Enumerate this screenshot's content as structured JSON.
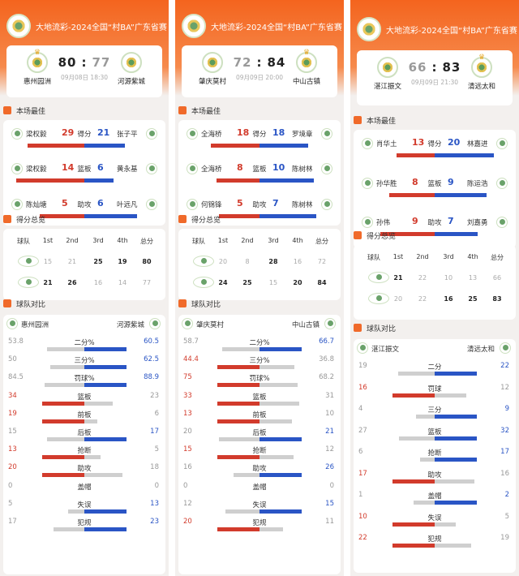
{
  "panels": [
    {
      "title": "大地流彩-2024全国“村BA”广东省赛",
      "team_left": "惠州园洲",
      "team_right": "河源紫城",
      "score_left": "80",
      "score_right": "77",
      "sep": ":",
      "winner": "left",
      "date": "09月08日 18:30",
      "best_title": "本场最佳",
      "best": [
        {
          "lp": "梁权毅",
          "lv": "29",
          "cat": "得分",
          "rv": "21",
          "rp": "张子平"
        },
        {
          "lp": "梁权毅",
          "lv": "14",
          "cat": "篮板",
          "rv": "6",
          "rp": "黄永基"
        },
        {
          "lp": "陈灿塘",
          "lv": "5",
          "cat": "助攻",
          "rv": "6",
          "rp": "叶远凡"
        }
      ],
      "quarters_title": "得分总览",
      "quarter_headers": [
        "球队",
        "1st",
        "2nd",
        "3rd",
        "4th",
        "总分"
      ],
      "quarter_rows": [
        [
          "15",
          "21",
          "25",
          "19",
          "80"
        ],
        [
          "21",
          "26",
          "16",
          "14",
          "77"
        ]
      ],
      "compare_title": "球队对比",
      "cmp_left": "惠州园洲",
      "cmp_right": "河源紫城",
      "compare": [
        {
          "l": "53.8",
          "c": "二分%",
          "r": "60.5"
        },
        {
          "l": "50",
          "c": "三分%",
          "r": "62.5"
        },
        {
          "l": "84.5",
          "c": "罚球%",
          "r": "88.9"
        },
        {
          "l": "34",
          "c": "篮板",
          "r": "23"
        },
        {
          "l": "19",
          "c": "前板",
          "r": "6"
        },
        {
          "l": "15",
          "c": "后板",
          "r": "17"
        },
        {
          "l": "13",
          "c": "抢断",
          "r": "5"
        },
        {
          "l": "20",
          "c": "助攻",
          "r": "18"
        },
        {
          "l": "0",
          "c": "盖帽",
          "r": "0"
        },
        {
          "l": "5",
          "c": "失误",
          "r": "13"
        },
        {
          "l": "17",
          "c": "犯规",
          "r": "23"
        }
      ]
    },
    {
      "title": "大地流彩-2024全国“村BA”广东省赛",
      "team_left": "肇庆莫村",
      "team_right": "中山古镇",
      "score_left": "72",
      "score_right": "84",
      "sep": ":",
      "winner": "right",
      "date": "09月09日 20:00",
      "best_title": "本场最佳",
      "best": [
        {
          "lp": "全海桥",
          "lv": "18",
          "cat": "得分",
          "rv": "18",
          "rp": "罗境章"
        },
        {
          "lp": "全海桥",
          "lv": "8",
          "cat": "篮板",
          "rv": "10",
          "rp": "陈树林"
        },
        {
          "lp": "何锦锋",
          "lv": "5",
          "cat": "助攻",
          "rv": "7",
          "rp": "陈树林"
        }
      ],
      "quarters_title": "得分总览",
      "quarter_headers": [
        "球队",
        "1st",
        "2nd",
        "3rd",
        "4th",
        "总分"
      ],
      "quarter_rows": [
        [
          "20",
          "8",
          "28",
          "16",
          "72"
        ],
        [
          "24",
          "25",
          "15",
          "20",
          "84"
        ]
      ],
      "compare_title": "球队对比",
      "cmp_left": "肇庆莫村",
      "cmp_right": "中山古镇",
      "compare": [
        {
          "l": "58.7",
          "c": "二分%",
          "r": "66.7"
        },
        {
          "l": "44.4",
          "c": "三分%",
          "r": "36.8"
        },
        {
          "l": "75",
          "c": "罚球%",
          "r": "68.2"
        },
        {
          "l": "33",
          "c": "篮板",
          "r": "31"
        },
        {
          "l": "13",
          "c": "前板",
          "r": "10"
        },
        {
          "l": "20",
          "c": "后板",
          "r": "21"
        },
        {
          "l": "15",
          "c": "抢断",
          "r": "12"
        },
        {
          "l": "16",
          "c": "助攻",
          "r": "26"
        },
        {
          "l": "0",
          "c": "盖帽",
          "r": "0"
        },
        {
          "l": "12",
          "c": "失误",
          "r": "15"
        },
        {
          "l": "20",
          "c": "犯规",
          "r": "11"
        }
      ]
    },
    {
      "title": "大地流彩-2024全国“村BA”广东省赛",
      "team_left": "湛江振文",
      "team_right": "清远太和",
      "score_left": "66",
      "score_right": "83",
      "sep": ":",
      "winner": "right",
      "date": "09月09日 21:30",
      "best_title": "本场最佳",
      "best": [
        {
          "lp": "肖华土",
          "lv": "13",
          "cat": "得分",
          "rv": "20",
          "rp": "林嘉进"
        },
        {
          "lp": "孙华胜",
          "lv": "8",
          "cat": "篮板",
          "rv": "9",
          "rp": "陈运浩"
        },
        {
          "lp": "孙伟",
          "lv": "9",
          "cat": "助攻",
          "rv": "7",
          "rp": "刘嘉勇"
        }
      ],
      "quarters_title": "得分总览",
      "quarter_headers": [
        "球队",
        "1st",
        "2nd",
        "3rd",
        "4th",
        "总分"
      ],
      "quarter_rows": [
        [
          "21",
          "22",
          "10",
          "13",
          "66"
        ],
        [
          "20",
          "22",
          "16",
          "25",
          "83"
        ]
      ],
      "compare_title": "球队对比",
      "cmp_left": "湛江振文",
      "cmp_right": "清远太和",
      "compare": [
        {
          "l": "19",
          "c": "二分",
          "r": "22"
        },
        {
          "l": "16",
          "c": "罚球",
          "r": "12"
        },
        {
          "l": "4",
          "c": "三分",
          "r": "9"
        },
        {
          "l": "27",
          "c": "篮板",
          "r": "32"
        },
        {
          "l": "6",
          "c": "抢断",
          "r": "17"
        },
        {
          "l": "17",
          "c": "助攻",
          "r": "16"
        },
        {
          "l": "1",
          "c": "盖帽",
          "r": "2"
        },
        {
          "l": "10",
          "c": "失误",
          "r": "5"
        },
        {
          "l": "22",
          "c": "犯规",
          "r": "19"
        }
      ]
    }
  ],
  "colors": {
    "orange": "#f4641e",
    "red": "#d23b2c",
    "blue": "#2a55c5",
    "gray": "#cfcfcf"
  }
}
